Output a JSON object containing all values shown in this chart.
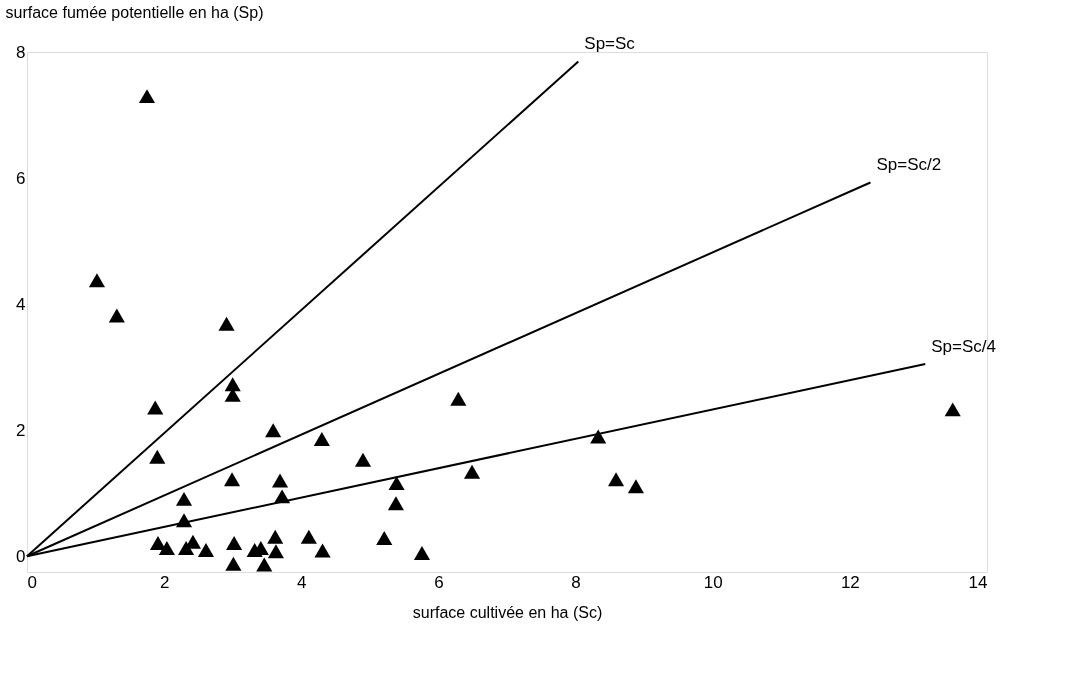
{
  "chart_data": {
    "type": "scatter",
    "xlabel": "surface cultivée en ha (Sc)",
    "ylabel": "surface fumée potentielle en ha (Sp)",
    "xlim": [
      0,
      14
    ],
    "ylim": [
      -0.25,
      8
    ],
    "xticks": [
      0,
      2,
      4,
      6,
      8,
      10,
      12,
      14
    ],
    "yticks": [
      0,
      2,
      4,
      6,
      8
    ],
    "marker": "triangle",
    "series": [
      {
        "color": "#000000",
        "x": [
          1.75,
          1.02,
          1.31,
          2.91,
          3.0,
          3.0,
          1.87,
          1.9,
          3.59,
          4.3,
          4.9,
          2.99,
          3.69,
          3.72,
          5.39,
          5.38,
          2.29,
          2.29,
          6.29,
          6.49,
          1.91,
          2.04,
          2.32,
          2.42,
          2.61,
          3.02,
          3.01,
          3.32,
          3.41,
          3.46,
          3.62,
          3.63,
          4.11,
          4.31,
          5.21,
          5.76,
          8.33,
          8.59,
          8.88,
          13.5
        ],
        "values": [
          7.3,
          4.38,
          3.82,
          3.69,
          2.73,
          2.56,
          2.36,
          1.58,
          2.0,
          1.86,
          1.53,
          1.22,
          1.2,
          0.95,
          1.16,
          0.84,
          0.91,
          0.57,
          2.5,
          1.34,
          0.21,
          0.13,
          0.13,
          0.23,
          0.1,
          0.21,
          -0.12,
          0.1,
          0.13,
          -0.13,
          0.31,
          0.08,
          0.31,
          0.09,
          0.29,
          0.05,
          1.9,
          1.22,
          1.11,
          2.33
        ]
      },
      {
        "type": "line",
        "name": "Sp=Sc",
        "marker": "none",
        "color": "#000000",
        "x": [
          0,
          8.04
        ],
        "values": [
          0,
          7.85
        ]
      },
      {
        "type": "line",
        "name": "Sp=Sc/2",
        "marker": "none",
        "color": "#000000",
        "x": [
          0,
          12.3
        ],
        "values": [
          0,
          5.93
        ]
      },
      {
        "type": "line",
        "name": "Sp=Sc/4",
        "marker": "none",
        "color": "#000000",
        "x": [
          0,
          13.1
        ],
        "values": [
          0,
          3.05
        ]
      }
    ]
  }
}
